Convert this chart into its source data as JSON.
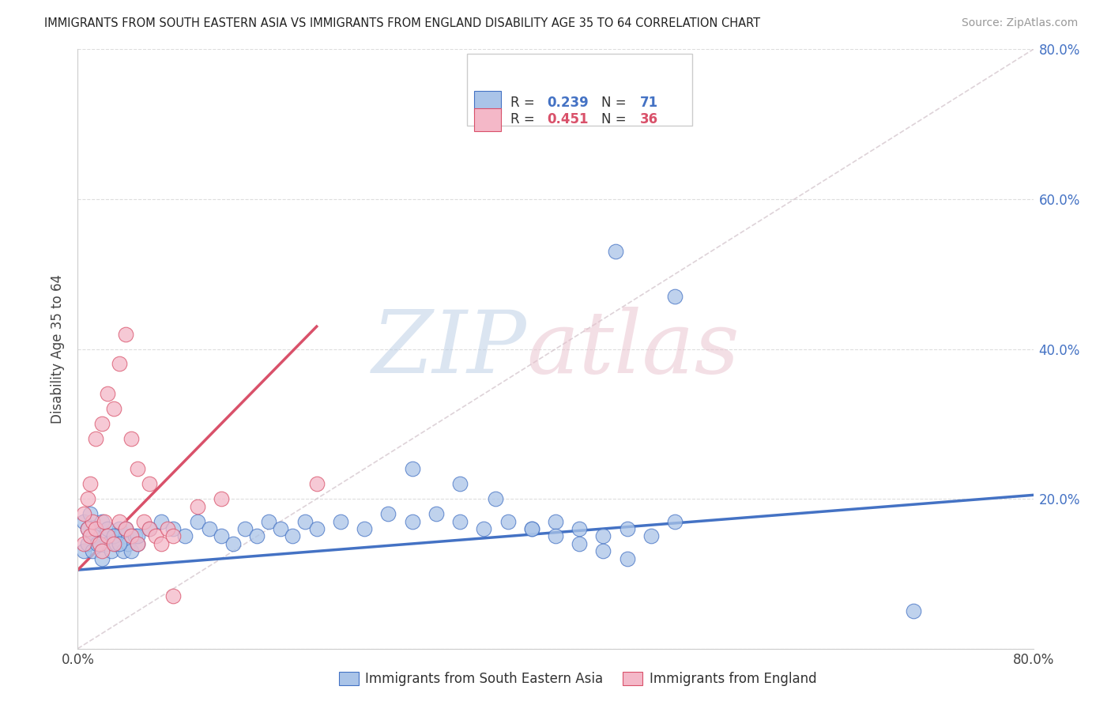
{
  "title": "IMMIGRANTS FROM SOUTH EASTERN ASIA VS IMMIGRANTS FROM ENGLAND DISABILITY AGE 35 TO 64 CORRELATION CHART",
  "source": "Source: ZipAtlas.com",
  "ylabel": "Disability Age 35 to 64",
  "xlim": [
    0.0,
    0.8
  ],
  "ylim": [
    0.0,
    0.8
  ],
  "legend_blue_R": "0.239",
  "legend_blue_N": "71",
  "legend_pink_R": "0.451",
  "legend_pink_N": "36",
  "legend_label_blue": "Immigrants from South Eastern Asia",
  "legend_label_pink": "Immigrants from England",
  "blue_color": "#aac4e8",
  "pink_color": "#f4b8c8",
  "blue_line_color": "#4472c4",
  "pink_line_color": "#d9516a",
  "grid_color": "#dddddd",
  "blue_scatter_x": [
    0.005,
    0.008,
    0.01,
    0.012,
    0.015,
    0.018,
    0.02,
    0.022,
    0.025,
    0.028,
    0.03,
    0.032,
    0.035,
    0.038,
    0.04,
    0.042,
    0.045,
    0.048,
    0.05,
    0.005,
    0.008,
    0.01,
    0.013,
    0.016,
    0.02,
    0.025,
    0.03,
    0.035,
    0.04,
    0.05,
    0.06,
    0.07,
    0.08,
    0.09,
    0.1,
    0.11,
    0.12,
    0.13,
    0.14,
    0.15,
    0.16,
    0.17,
    0.18,
    0.19,
    0.2,
    0.22,
    0.24,
    0.26,
    0.28,
    0.3,
    0.32,
    0.34,
    0.36,
    0.38,
    0.4,
    0.42,
    0.44,
    0.46,
    0.48,
    0.5,
    0.28,
    0.32,
    0.35,
    0.38,
    0.4,
    0.42,
    0.44,
    0.46,
    0.7,
    0.5,
    0.45
  ],
  "blue_scatter_y": [
    0.13,
    0.14,
    0.15,
    0.13,
    0.16,
    0.14,
    0.12,
    0.15,
    0.14,
    0.13,
    0.15,
    0.14,
    0.16,
    0.13,
    0.15,
    0.14,
    0.13,
    0.15,
    0.14,
    0.17,
    0.16,
    0.18,
    0.15,
    0.14,
    0.17,
    0.16,
    0.15,
    0.14,
    0.16,
    0.15,
    0.16,
    0.17,
    0.16,
    0.15,
    0.17,
    0.16,
    0.15,
    0.14,
    0.16,
    0.15,
    0.17,
    0.16,
    0.15,
    0.17,
    0.16,
    0.17,
    0.16,
    0.18,
    0.17,
    0.18,
    0.17,
    0.16,
    0.17,
    0.16,
    0.17,
    0.16,
    0.15,
    0.16,
    0.15,
    0.17,
    0.24,
    0.22,
    0.2,
    0.16,
    0.15,
    0.14,
    0.13,
    0.12,
    0.05,
    0.47,
    0.53
  ],
  "pink_scatter_x": [
    0.005,
    0.008,
    0.01,
    0.012,
    0.015,
    0.018,
    0.02,
    0.022,
    0.025,
    0.03,
    0.035,
    0.04,
    0.045,
    0.05,
    0.055,
    0.06,
    0.065,
    0.07,
    0.075,
    0.08,
    0.005,
    0.008,
    0.01,
    0.015,
    0.02,
    0.025,
    0.03,
    0.035,
    0.04,
    0.045,
    0.05,
    0.06,
    0.08,
    0.1,
    0.12,
    0.2
  ],
  "pink_scatter_y": [
    0.14,
    0.16,
    0.15,
    0.17,
    0.16,
    0.14,
    0.13,
    0.17,
    0.15,
    0.14,
    0.17,
    0.16,
    0.15,
    0.14,
    0.17,
    0.16,
    0.15,
    0.14,
    0.16,
    0.15,
    0.18,
    0.2,
    0.22,
    0.28,
    0.3,
    0.34,
    0.32,
    0.38,
    0.42,
    0.28,
    0.24,
    0.22,
    0.07,
    0.19,
    0.2,
    0.22
  ],
  "blue_line_x": [
    0.0,
    0.8
  ],
  "blue_line_y": [
    0.105,
    0.205
  ],
  "pink_line_x": [
    0.0,
    0.2
  ],
  "pink_line_y": [
    0.105,
    0.43
  ],
  "diag_line_x": [
    0.0,
    0.8
  ],
  "diag_line_y": [
    0.0,
    0.8
  ]
}
